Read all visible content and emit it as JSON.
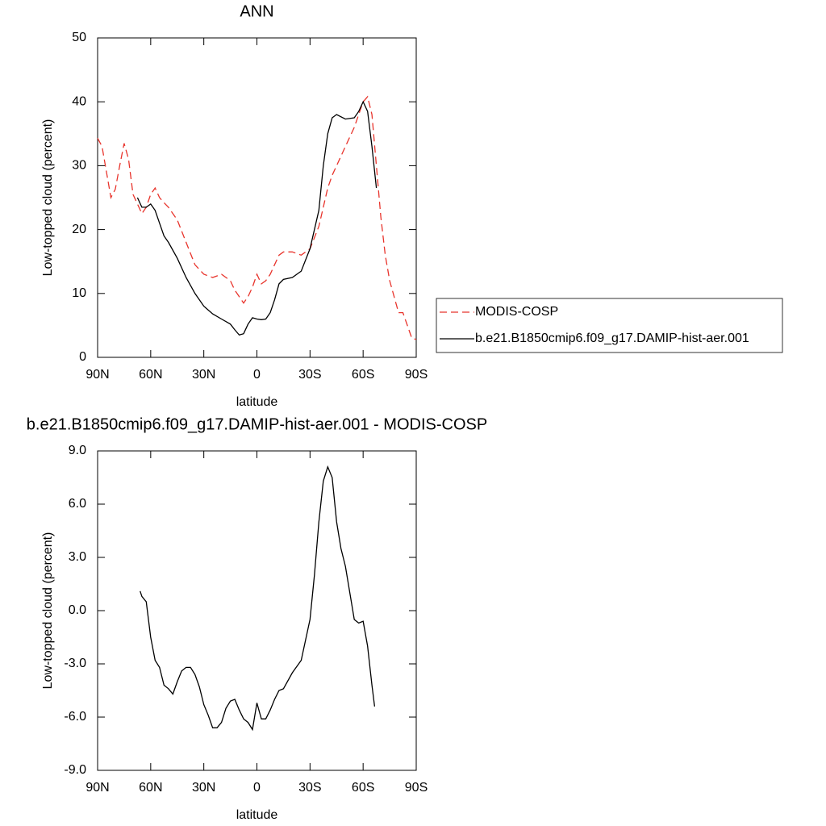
{
  "chart_data": [
    {
      "type": "line",
      "title": "ANN",
      "x_label": "latitude",
      "y_label": "Low-topped cloud (percent)",
      "xlim": [
        90,
        -90
      ],
      "ylim": [
        0,
        50
      ],
      "xticks": [
        {
          "value": 90,
          "label": "90N"
        },
        {
          "value": 60,
          "label": "60N"
        },
        {
          "value": 30,
          "label": "30N"
        },
        0,
        {
          "value": -30,
          "label": "30S"
        },
        {
          "value": -60,
          "label": "60S"
        },
        {
          "value": -90,
          "label": "90S"
        }
      ],
      "yticks": [
        0,
        10,
        20,
        30,
        40,
        50
      ],
      "legend": "right",
      "x": [
        90,
        87.5,
        85,
        82.5,
        80,
        77.5,
        75,
        72.5,
        70,
        67.5,
        65,
        62.5,
        60,
        57.5,
        55,
        52.5,
        50,
        45,
        40,
        35,
        30,
        25,
        20,
        15,
        12.5,
        10,
        7.5,
        5,
        2.5,
        0,
        -2.5,
        -5,
        -7.5,
        -10,
        -12.5,
        -15,
        -20,
        -25,
        -30,
        -35,
        -37.5,
        -40,
        -42.5,
        -45,
        -50,
        -55,
        -57.5,
        -60,
        -62.5,
        -65,
        -67.5,
        -70,
        -72.5,
        -75,
        -80,
        -82.5,
        -85,
        -87.5,
        -90
      ],
      "series": [
        {
          "name": "MODIS-COSP",
          "color": "#e8342c",
          "dashed": true,
          "values": [
            34.3,
            33,
            29,
            25,
            26.3,
            30,
            33.5,
            31,
            25.5,
            24,
            22.5,
            23.5,
            25.5,
            26.5,
            25,
            24.2,
            23.5,
            21.5,
            18,
            14.5,
            13,
            12.5,
            13,
            12,
            10.5,
            9.5,
            8.5,
            9.5,
            11,
            13,
            11.5,
            12,
            13,
            14.5,
            16,
            16.5,
            16.5,
            16,
            17,
            20.5,
            23.5,
            26.5,
            28.5,
            30,
            33,
            36,
            38,
            40,
            40.8,
            38,
            30,
            22,
            16,
            12,
            7,
            7,
            5,
            3,
            2.8
          ]
        },
        {
          "name": "b.e21.B1850cmip6.f09_g17.DAMIP-hist-aer.001",
          "color": "#000000",
          "dashed": false,
          "values": [
            null,
            null,
            null,
            null,
            null,
            null,
            null,
            null,
            null,
            25,
            23.5,
            23.5,
            24,
            23,
            21,
            19,
            18,
            15.5,
            12.5,
            10,
            8,
            6.8,
            6,
            5.2,
            4.3,
            3.5,
            3.7,
            5.2,
            6.2,
            6,
            5.9,
            6,
            7,
            9,
            11.5,
            12.2,
            12.5,
            13.5,
            17,
            23,
            30,
            35,
            37.5,
            38,
            37.3,
            37.5,
            38.5,
            40,
            38.5,
            33,
            26.5,
            null,
            null,
            null,
            null,
            null,
            null,
            null,
            null
          ]
        }
      ]
    },
    {
      "type": "line",
      "title": "b.e21.B1850cmip6.f09_g17.DAMIP-hist-aer.001 - MODIS-COSP",
      "x_label": "latitude",
      "y_label": "Low-topped cloud (percent)",
      "xlim": [
        90,
        -90
      ],
      "ylim": [
        -9,
        9
      ],
      "xticks": [
        {
          "value": 90,
          "label": "90N"
        },
        {
          "value": 60,
          "label": "60N"
        },
        {
          "value": 30,
          "label": "30N"
        },
        0,
        {
          "value": -30,
          "label": "30S"
        },
        {
          "value": -60,
          "label": "60S"
        },
        {
          "value": -90,
          "label": "90S"
        }
      ],
      "yticks": [
        {
          "value": -9,
          "label": "-9.0"
        },
        {
          "value": -6,
          "label": "-6.0"
        },
        {
          "value": -3,
          "label": "-3.0"
        },
        {
          "value": 0,
          "label": "0.0"
        },
        {
          "value": 3,
          "label": "3.0"
        },
        {
          "value": 6,
          "label": "6.0"
        },
        {
          "value": 9,
          "label": "9.0"
        }
      ],
      "x": [
        66,
        65,
        62.5,
        60,
        57.5,
        55,
        52.5,
        50,
        47.5,
        45,
        42.5,
        40,
        37.5,
        35,
        32.5,
        30,
        27.5,
        25,
        22.5,
        20,
        17.5,
        15,
        12.5,
        10,
        7.5,
        5,
        2.5,
        0,
        -2.5,
        -5,
        -7.5,
        -10,
        -12.5,
        -15,
        -20,
        -25,
        -30,
        -32.5,
        -35,
        -37.5,
        -40,
        -42.5,
        -45,
        -47.5,
        -50,
        -52.5,
        -55,
        -57.5,
        -60,
        -62.5,
        -65,
        -66.5
      ],
      "series": [
        {
          "color": "#000000",
          "dashed": false,
          "values": [
            1.1,
            0.8,
            0.5,
            -1.5,
            -2.8,
            -3.2,
            -4.2,
            -4.4,
            -4.7,
            -4.0,
            -3.4,
            -3.2,
            -3.2,
            -3.6,
            -4.3,
            -5.3,
            -5.9,
            -6.6,
            -6.6,
            -6.3,
            -5.5,
            -5.1,
            -5.0,
            -5.6,
            -6.1,
            -6.3,
            -6.7,
            -5.2,
            -6.1,
            -6.1,
            -5.6,
            -5.0,
            -4.5,
            -4.4,
            -3.5,
            -2.8,
            -0.5,
            2.0,
            5.0,
            7.3,
            8.1,
            7.5,
            5.0,
            3.5,
            2.5,
            1.0,
            -0.5,
            -0.7,
            -0.6,
            -2.0,
            -4.2,
            -5.4
          ]
        }
      ]
    }
  ]
}
